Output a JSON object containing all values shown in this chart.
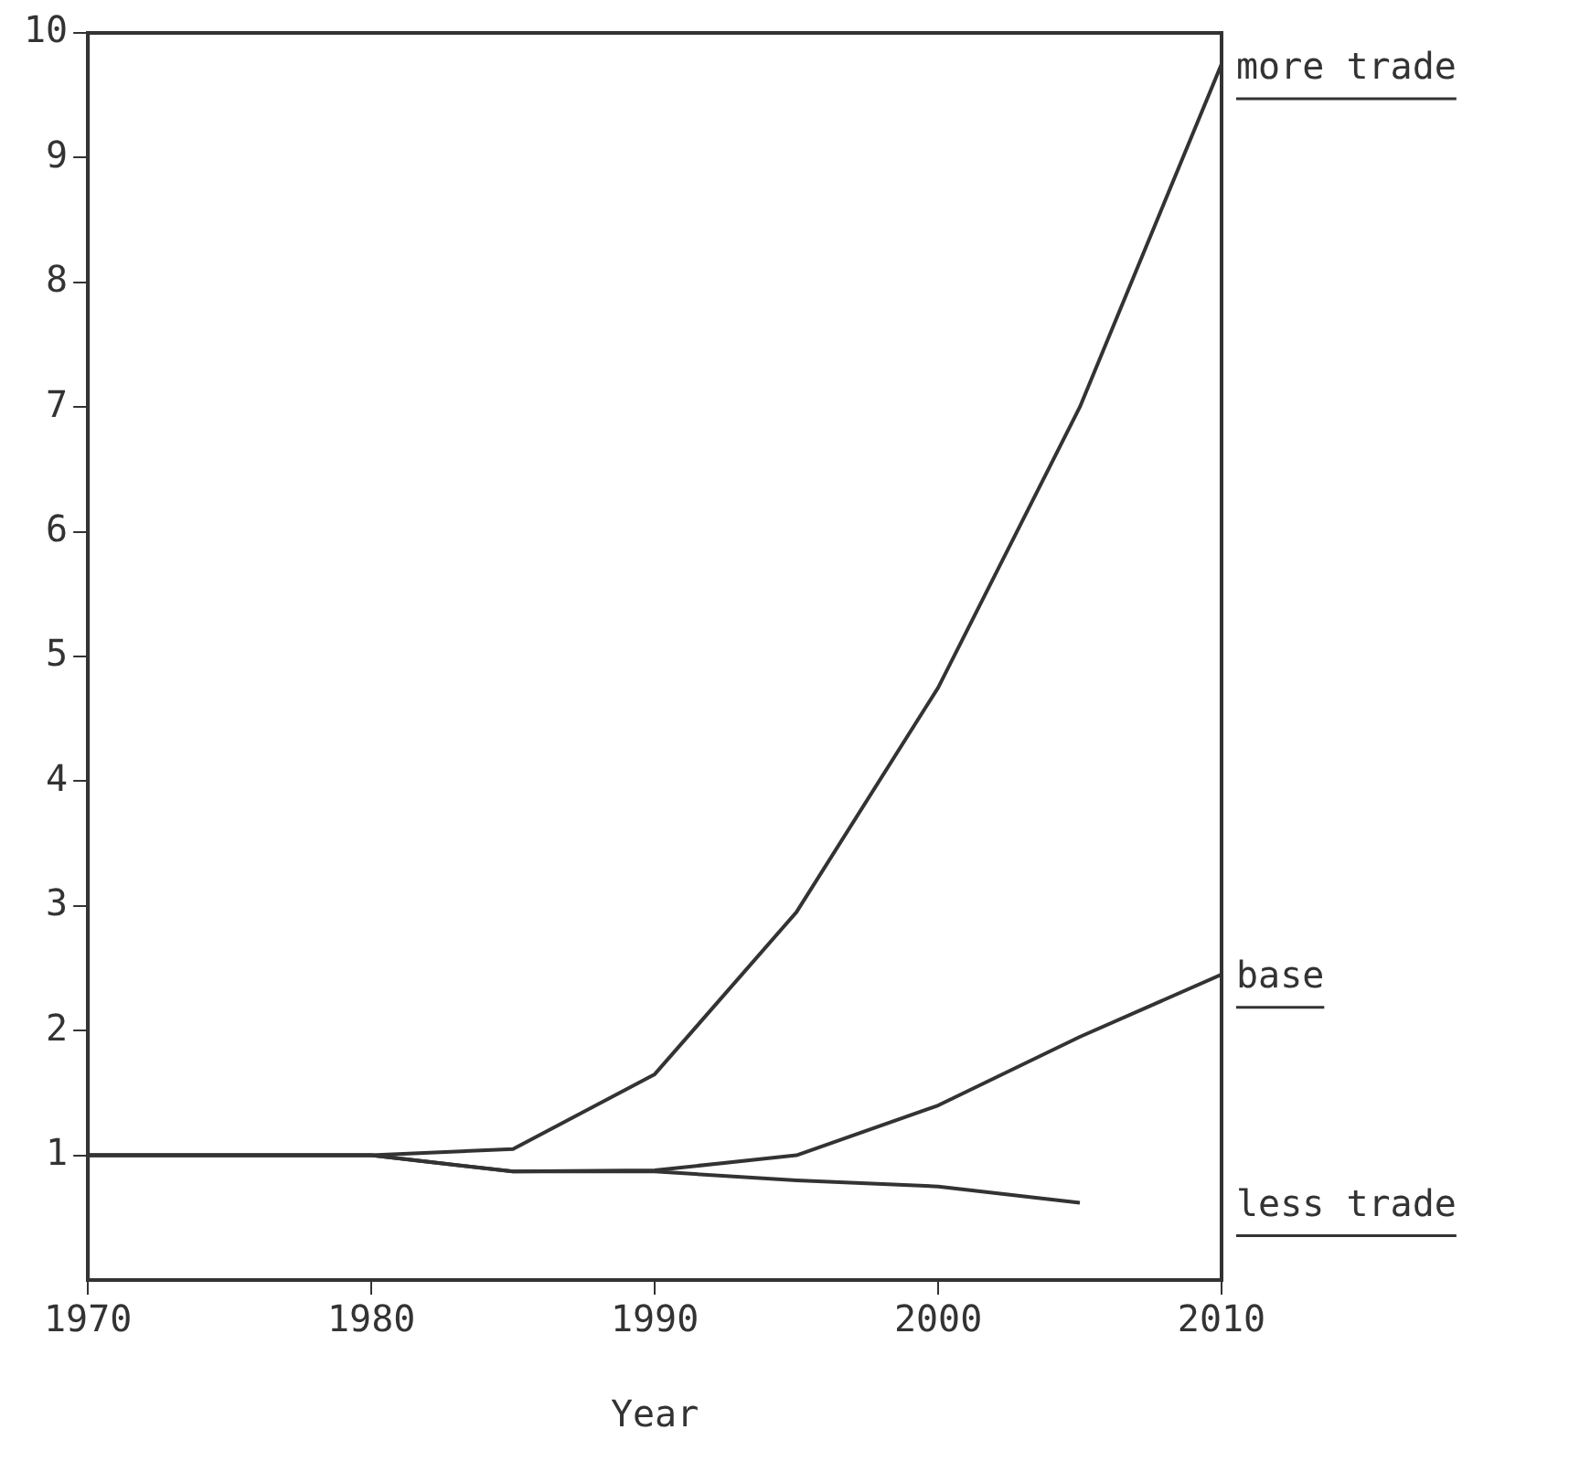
{
  "chart_data": {
    "type": "line",
    "xlabel": "Year",
    "x": [
      1970,
      1975,
      1980,
      1985,
      1990,
      1995,
      2000,
      2005,
      2010
    ],
    "series": [
      {
        "name": "more trade",
        "color": "#333333",
        "values": [
          1,
          1,
          1,
          1.05,
          1.65,
          2.95,
          4.75,
          7.0,
          9.75
        ]
      },
      {
        "name": "base",
        "color": "#333333",
        "values": [
          1,
          1,
          1,
          0.87,
          0.88,
          1.0,
          1.4,
          1.95,
          2.45
        ]
      },
      {
        "name": "less trade",
        "color": "#333333",
        "values": [
          1,
          1,
          1,
          0.87,
          0.87,
          0.8,
          0.75,
          0.62,
          null
        ]
      }
    ],
    "xlim": [
      1970,
      2010
    ],
    "xticks": [
      1970,
      1980,
      1990,
      2000,
      2010
    ],
    "ylim": [
      0,
      10
    ],
    "yticks": [
      1,
      2,
      3,
      4,
      5,
      6,
      7,
      8,
      9,
      10
    ],
    "grid": false,
    "legend": false,
    "marker": "none",
    "line_style": "solid"
  }
}
